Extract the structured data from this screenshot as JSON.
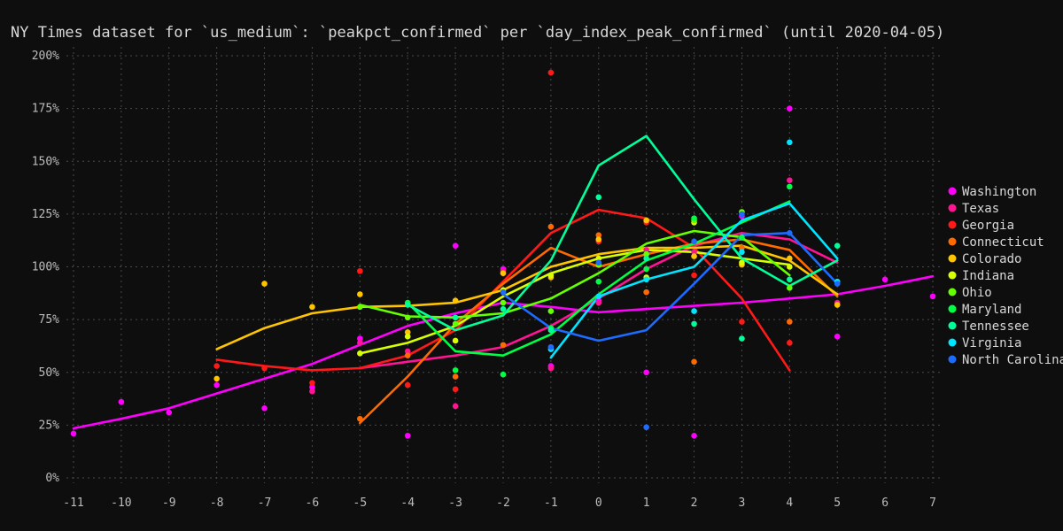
{
  "chart_data": {
    "type": "line",
    "title": "NY Times dataset for `us_medium`: `peakpct_confirmed` per `day_index_peak_confirmed` (until 2020-04-05)",
    "xlabel": "",
    "ylabel": "",
    "x_ticks": [
      -11,
      -10,
      -9,
      -8,
      -7,
      -6,
      -5,
      -4,
      -3,
      -2,
      -1,
      0,
      1,
      2,
      3,
      4,
      5,
      6,
      7
    ],
    "y_ticks": [
      0,
      25,
      50,
      75,
      100,
      125,
      150,
      175,
      200
    ],
    "y_tick_labels": [
      "0%",
      "25%",
      "50%",
      "75%",
      "100%",
      "125%",
      "150%",
      "175%",
      "200%"
    ],
    "xlim": [
      -11,
      7
    ],
    "ylim": [
      0,
      200
    ],
    "grid": true,
    "legend_position": "right",
    "series": [
      {
        "name": "Washington",
        "color": "#ff00ff",
        "line": [
          [
            -11,
            23.5
          ],
          [
            -10,
            28
          ],
          [
            -9,
            33
          ],
          [
            -8,
            40
          ],
          [
            -7,
            47
          ],
          [
            -6,
            54
          ],
          [
            -5,
            63
          ],
          [
            -4,
            72
          ],
          [
            -3,
            78
          ],
          [
            -2,
            83
          ],
          [
            -1,
            81
          ],
          [
            0,
            78.5
          ],
          [
            1,
            80
          ],
          [
            2,
            81.5
          ],
          [
            3,
            83
          ],
          [
            4,
            85
          ],
          [
            5,
            87
          ],
          [
            6,
            91
          ],
          [
            7,
            95.5
          ]
        ],
        "points": [
          [
            -11,
            21
          ],
          [
            -10,
            36
          ],
          [
            -9,
            31
          ],
          [
            -8,
            44
          ],
          [
            -7,
            33
          ],
          [
            -6,
            43
          ],
          [
            -5,
            66
          ],
          [
            -4,
            20
          ],
          [
            -3,
            110
          ],
          [
            -2,
            99
          ],
          [
            -1,
            53
          ],
          [
            0,
            84
          ],
          [
            1,
            50
          ],
          [
            2,
            20
          ],
          [
            3,
            124
          ],
          [
            4,
            175
          ],
          [
            5,
            67
          ],
          [
            6,
            94
          ],
          [
            7,
            86
          ]
        ]
      },
      {
        "name": "Texas",
        "color": "#ff1493",
        "line": [
          [
            -5,
            52
          ],
          [
            -4,
            55
          ],
          [
            -3,
            58
          ],
          [
            -2,
            62
          ],
          [
            -1,
            72
          ],
          [
            0,
            85
          ],
          [
            1,
            99
          ],
          [
            2,
            110
          ],
          [
            3,
            116
          ],
          [
            4,
            113
          ],
          [
            5,
            102
          ]
        ],
        "points": [
          [
            -6,
            41
          ],
          [
            -5,
            64
          ],
          [
            -4,
            60
          ],
          [
            -3,
            34
          ],
          [
            -2,
            98
          ],
          [
            -1,
            52
          ],
          [
            0,
            83
          ],
          [
            1,
            108
          ],
          [
            2,
            107
          ],
          [
            3,
            126
          ],
          [
            4,
            141
          ],
          [
            5,
            83
          ]
        ]
      },
      {
        "name": "Georgia",
        "color": "#ff1a1a",
        "line": [
          [
            -8,
            56
          ],
          [
            -7,
            53
          ],
          [
            -6,
            51
          ],
          [
            -5,
            52
          ],
          [
            -4,
            58
          ],
          [
            -3,
            70
          ],
          [
            -2,
            93
          ],
          [
            -1,
            116
          ],
          [
            0,
            127
          ],
          [
            1,
            123
          ],
          [
            2,
            109
          ],
          [
            3,
            85
          ],
          [
            4,
            51
          ]
        ],
        "points": [
          [
            -8,
            53
          ],
          [
            -7,
            52
          ],
          [
            -6,
            45
          ],
          [
            -5,
            98
          ],
          [
            -4,
            44
          ],
          [
            -3,
            42
          ],
          [
            -2,
            97
          ],
          [
            -1,
            192
          ],
          [
            0,
            112
          ],
          [
            1,
            121
          ],
          [
            2,
            96
          ],
          [
            3,
            74
          ],
          [
            4,
            64
          ]
        ]
      },
      {
        "name": "Connecticut",
        "color": "#ff6a00",
        "line": [
          [
            -5,
            26
          ],
          [
            -4,
            48
          ],
          [
            -3,
            73
          ],
          [
            -2,
            92
          ],
          [
            -1,
            109
          ],
          [
            0,
            100
          ],
          [
            1,
            106
          ],
          [
            2,
            111
          ],
          [
            3,
            113
          ],
          [
            4,
            108
          ],
          [
            5,
            86
          ]
        ],
        "points": [
          [
            -5,
            28
          ],
          [
            -4,
            58
          ],
          [
            -3,
            48
          ],
          [
            -2,
            63
          ],
          [
            -1,
            119
          ],
          [
            0,
            115
          ],
          [
            1,
            88
          ],
          [
            2,
            55
          ],
          [
            3,
            109
          ],
          [
            4,
            74
          ],
          [
            5,
            82
          ]
        ]
      },
      {
        "name": "Colorado",
        "color": "#ffc400",
        "line": [
          [
            -8,
            61
          ],
          [
            -7,
            71
          ],
          [
            -6,
            78
          ],
          [
            -5,
            81
          ],
          [
            -4,
            81.5
          ],
          [
            -3,
            83
          ],
          [
            -2,
            89
          ],
          [
            -1,
            100
          ],
          [
            0,
            106
          ],
          [
            1,
            109
          ],
          [
            2,
            109
          ],
          [
            3,
            110
          ],
          [
            4,
            103
          ],
          [
            5,
            87
          ]
        ],
        "points": [
          [
            -8,
            47
          ],
          [
            -7,
            92
          ],
          [
            -6,
            81
          ],
          [
            -5,
            87
          ],
          [
            -4,
            69
          ],
          [
            -3,
            84
          ],
          [
            -2,
            97
          ],
          [
            -1,
            95
          ],
          [
            0,
            113
          ],
          [
            1,
            122
          ],
          [
            2,
            105
          ],
          [
            3,
            101
          ],
          [
            4,
            104
          ],
          [
            5,
            82
          ]
        ]
      },
      {
        "name": "Indiana",
        "color": "#d8ff00",
        "line": [
          [
            -5,
            59
          ],
          [
            -4,
            64
          ],
          [
            -3,
            72
          ],
          [
            -2,
            86
          ],
          [
            -1,
            97
          ],
          [
            0,
            104
          ],
          [
            1,
            108
          ],
          [
            2,
            107
          ],
          [
            3,
            104
          ],
          [
            4,
            101
          ]
        ],
        "points": [
          [
            -5,
            59
          ],
          [
            -4,
            67
          ],
          [
            -3,
            65
          ],
          [
            -2,
            89
          ],
          [
            -1,
            96
          ],
          [
            0,
            104
          ],
          [
            1,
            95
          ],
          [
            2,
            121
          ],
          [
            3,
            102
          ],
          [
            4,
            100
          ]
        ]
      },
      {
        "name": "Ohio",
        "color": "#66ff00",
        "line": [
          [
            -5,
            82
          ],
          [
            -4,
            76.5
          ],
          [
            -3,
            76
          ],
          [
            -2,
            78
          ],
          [
            -1,
            85
          ],
          [
            0,
            97
          ],
          [
            1,
            111
          ],
          [
            2,
            117
          ],
          [
            3,
            114
          ],
          [
            4,
            96
          ]
        ],
        "points": [
          [
            -5,
            81
          ],
          [
            -4,
            76
          ],
          [
            -3,
            73
          ],
          [
            -2,
            83
          ],
          [
            -1,
            79
          ],
          [
            0,
            101
          ],
          [
            1,
            106
          ],
          [
            2,
            122
          ],
          [
            3,
            126
          ],
          [
            4,
            90
          ]
        ]
      },
      {
        "name": "Maryland",
        "color": "#00ff44",
        "line": [
          [
            -4,
            83
          ],
          [
            -3,
            60
          ],
          [
            -2,
            58
          ],
          [
            -1,
            68
          ],
          [
            0,
            87
          ],
          [
            1,
            103
          ],
          [
            2,
            111
          ],
          [
            3,
            121
          ],
          [
            4,
            131
          ]
        ],
        "points": [
          [
            -4,
            83
          ],
          [
            -3,
            51
          ],
          [
            -2,
            49
          ],
          [
            -1,
            71
          ],
          [
            0,
            93
          ],
          [
            1,
            99
          ],
          [
            2,
            123
          ],
          [
            3,
            114
          ],
          [
            4,
            138
          ]
        ]
      },
      {
        "name": "Tennessee",
        "color": "#00ff99",
        "line": [
          [
            -4,
            82
          ],
          [
            -3,
            70
          ],
          [
            -2,
            77
          ],
          [
            -1,
            103
          ],
          [
            0,
            148
          ],
          [
            1,
            162
          ],
          [
            2,
            132
          ],
          [
            3,
            104
          ],
          [
            4,
            91
          ],
          [
            5,
            103
          ]
        ],
        "points": [
          [
            -4,
            82
          ],
          [
            -3,
            76
          ],
          [
            -2,
            80
          ],
          [
            -1,
            70
          ],
          [
            0,
            133
          ],
          [
            1,
            104
          ],
          [
            2,
            73
          ],
          [
            3,
            66
          ],
          [
            4,
            94
          ],
          [
            5,
            110
          ]
        ]
      },
      {
        "name": "Virginia",
        "color": "#00e5ff",
        "line": [
          [
            -1,
            57
          ],
          [
            0,
            86
          ],
          [
            1,
            94
          ],
          [
            2,
            100
          ],
          [
            3,
            122
          ],
          [
            4,
            130
          ],
          [
            5,
            104
          ]
        ],
        "points": [
          [
            -1,
            61
          ],
          [
            0,
            86
          ],
          [
            1,
            94
          ],
          [
            2,
            79
          ],
          [
            3,
            107
          ],
          [
            4,
            159
          ],
          [
            5,
            93
          ]
        ]
      },
      {
        "name": "North Carolina",
        "color": "#1e6bff",
        "line": [
          [
            -2,
            87
          ],
          [
            -1,
            71
          ],
          [
            0,
            65
          ],
          [
            1,
            70
          ],
          [
            2,
            92
          ],
          [
            3,
            115
          ],
          [
            4,
            116
          ],
          [
            5,
            92
          ]
        ],
        "points": [
          [
            -2,
            88
          ],
          [
            -1,
            62
          ],
          [
            0,
            102
          ],
          [
            1,
            24
          ],
          [
            2,
            112
          ],
          [
            3,
            125
          ],
          [
            4,
            116
          ],
          [
            5,
            92
          ]
        ]
      }
    ]
  }
}
